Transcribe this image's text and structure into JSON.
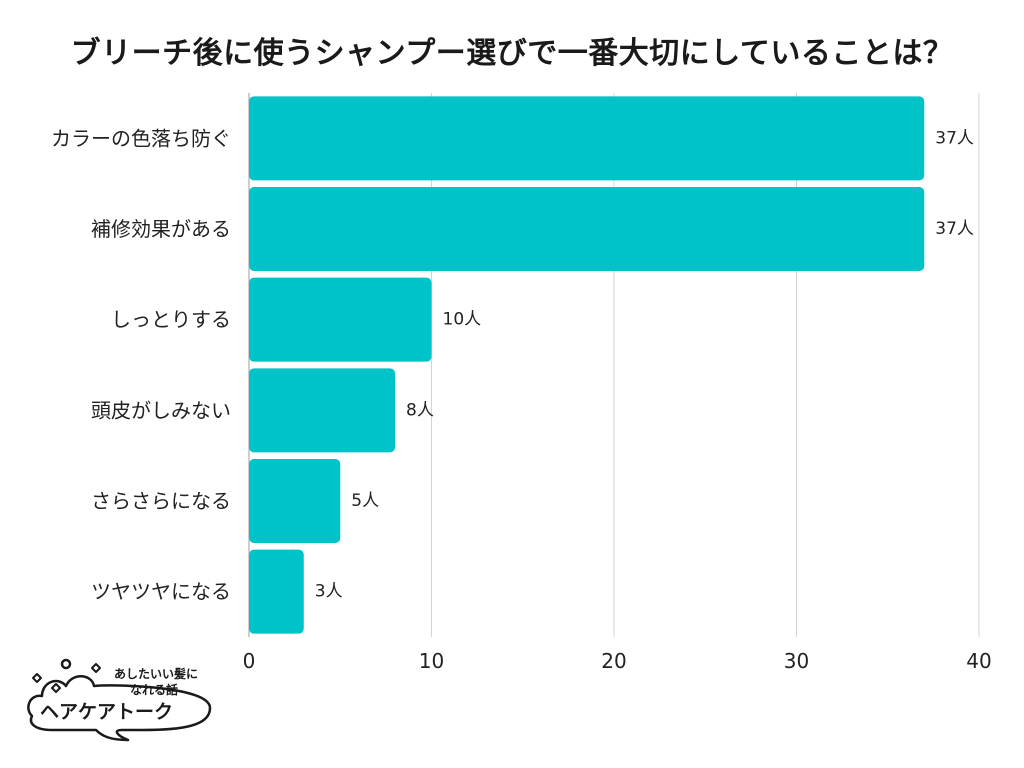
{
  "chart_data": {
    "type": "bar",
    "orientation": "horizontal",
    "title": "ブリーチ後に使うシャンプー選びで一番大切にしていることは？",
    "categories": [
      "カラーの色落ち防ぐ",
      "補修効果がある",
      "しっとりする",
      "頭皮がしみない",
      "さらさらになる",
      "ツヤツヤになる"
    ],
    "values": [
      37,
      37,
      10,
      8,
      5,
      3
    ],
    "value_suffix": "人",
    "xlim": [
      0,
      40
    ],
    "xticks": [
      0,
      10,
      20,
      30,
      40
    ],
    "grid": true,
    "bar_color": "#00c2c9"
  },
  "logo": {
    "tagline_1": "あしたいい髪に",
    "tagline_2": "なれる話",
    "name": "ヘアケアトーク",
    "icon": "cloud-speech-bubble-icon"
  }
}
